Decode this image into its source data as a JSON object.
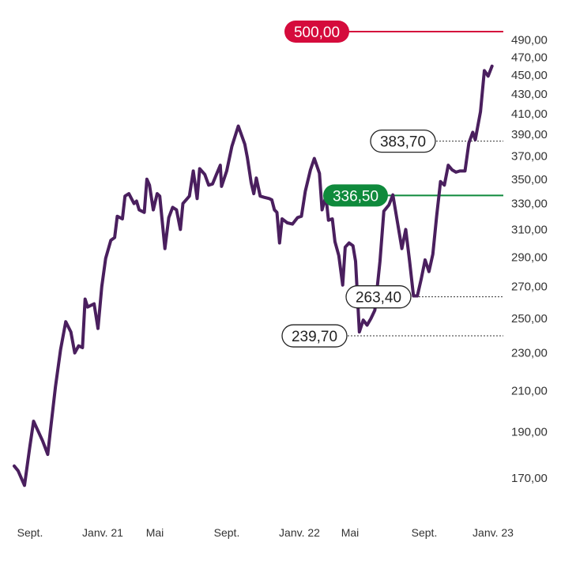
{
  "chart_data": {
    "type": "line",
    "title": "",
    "xlabel": "",
    "ylabel": "",
    "colors": {
      "line": "#4a1f5e",
      "target": "#d50b3c",
      "support": "#0f8a3c",
      "marker": "#333333"
    },
    "x_ticks": [
      "Sept.",
      "Janv. 21",
      "Mai",
      "Sept.",
      "Janv. 22",
      "Mai",
      "Sept.",
      "Janv. 23"
    ],
    "y_ticks": [
      "170,00",
      "190,00",
      "210,00",
      "230,00",
      "250,00",
      "270,00",
      "290,00",
      "310,00",
      "330,00",
      "350,00",
      "370,00",
      "390,00",
      "410,00",
      "430,00",
      "450,00",
      "470,00",
      "490,00"
    ],
    "ylim": [
      165,
      505
    ],
    "y_scale": "log",
    "grid": false,
    "series": [
      {
        "values": [
          [
            0.0,
            175
          ],
          [
            0.3,
            173
          ],
          [
            0.8,
            167
          ],
          [
            1.2,
            183
          ],
          [
            1.5,
            195
          ],
          [
            2.2,
            186
          ],
          [
            2.6,
            180
          ],
          [
            2.8,
            190
          ],
          [
            3.2,
            212
          ],
          [
            3.6,
            232
          ],
          [
            4.0,
            248
          ],
          [
            4.4,
            242
          ],
          [
            4.7,
            230
          ],
          [
            5.0,
            234
          ],
          [
            5.3,
            233
          ],
          [
            5.5,
            262
          ],
          [
            5.7,
            257
          ],
          [
            6.2,
            259
          ],
          [
            6.5,
            244
          ],
          [
            6.8,
            270
          ],
          [
            7.1,
            289
          ],
          [
            7.5,
            302
          ],
          [
            7.8,
            304
          ],
          [
            8.0,
            320
          ],
          [
            8.4,
            318
          ],
          [
            8.6,
            336
          ],
          [
            8.9,
            338
          ],
          [
            9.3,
            330
          ],
          [
            9.5,
            332
          ],
          [
            9.7,
            325
          ],
          [
            10.1,
            323
          ],
          [
            10.3,
            350
          ],
          [
            10.5,
            345
          ],
          [
            10.8,
            325
          ],
          [
            11.1,
            338
          ],
          [
            11.3,
            336
          ],
          [
            11.7,
            296
          ],
          [
            12.0,
            319
          ],
          [
            12.3,
            327
          ],
          [
            12.6,
            325
          ],
          [
            12.9,
            310
          ],
          [
            13.1,
            330
          ],
          [
            13.6,
            336
          ],
          [
            13.9,
            357
          ],
          [
            14.2,
            334
          ],
          [
            14.4,
            359
          ],
          [
            14.8,
            354
          ],
          [
            15.1,
            345
          ],
          [
            15.4,
            346
          ],
          [
            15.7,
            354
          ],
          [
            16.0,
            362
          ],
          [
            16.1,
            344
          ],
          [
            16.5,
            357
          ],
          [
            16.9,
            379
          ],
          [
            17.4,
            398
          ],
          [
            17.9,
            381
          ],
          [
            18.1,
            369
          ],
          [
            18.4,
            347
          ],
          [
            18.6,
            338
          ],
          [
            18.8,
            351
          ],
          [
            19.1,
            336
          ],
          [
            19.4,
            335
          ],
          [
            19.8,
            334
          ],
          [
            20.0,
            333
          ],
          [
            20.2,
            325
          ],
          [
            20.4,
            323
          ],
          [
            20.6,
            300
          ],
          [
            20.8,
            318
          ],
          [
            21.2,
            315
          ],
          [
            21.6,
            314
          ],
          [
            22.0,
            319
          ],
          [
            22.3,
            320
          ],
          [
            22.6,
            340
          ],
          [
            23.0,
            358
          ],
          [
            23.3,
            368
          ],
          [
            23.7,
            355
          ],
          [
            23.9,
            325
          ],
          [
            24.2,
            336
          ],
          [
            24.4,
            317
          ],
          [
            24.7,
            318
          ],
          [
            24.9,
            301
          ],
          [
            25.2,
            291
          ],
          [
            25.5,
            271
          ],
          [
            25.7,
            297
          ],
          [
            26.0,
            300
          ],
          [
            26.3,
            298
          ],
          [
            26.5,
            287
          ],
          [
            26.8,
            242
          ],
          [
            27.1,
            249
          ],
          [
            27.4,
            246
          ],
          [
            27.7,
            250
          ],
          [
            28.0,
            255
          ],
          [
            28.4,
            287
          ],
          [
            28.7,
            324
          ],
          [
            29.1,
            329
          ],
          [
            29.4,
            337
          ],
          [
            29.8,
            313
          ],
          [
            30.1,
            296
          ],
          [
            30.4,
            310
          ],
          [
            30.7,
            287
          ],
          [
            31.0,
            264
          ],
          [
            31.3,
            264
          ],
          [
            31.6,
            275
          ],
          [
            31.9,
            288
          ],
          [
            32.2,
            280
          ],
          [
            32.5,
            292
          ],
          [
            32.8,
            320
          ],
          [
            33.1,
            348
          ],
          [
            33.4,
            345
          ],
          [
            33.7,
            362
          ],
          [
            34.0,
            358
          ],
          [
            34.3,
            356
          ],
          [
            34.6,
            357
          ],
          [
            35.0,
            357
          ],
          [
            35.3,
            382
          ],
          [
            35.6,
            392
          ],
          [
            35.8,
            385
          ],
          [
            36.2,
            412
          ],
          [
            36.5,
            455
          ],
          [
            36.8,
            449
          ],
          [
            37.1,
            460
          ]
        ]
      }
    ],
    "reference_lines": [
      {
        "value": 500,
        "label": "500,00",
        "kind": "target"
      },
      {
        "value": 336.5,
        "label": "336,50",
        "kind": "support"
      }
    ],
    "markers": [
      {
        "value": 383.7,
        "label": "383,70"
      },
      {
        "value": 263.4,
        "label": "263,40"
      },
      {
        "value": 239.7,
        "label": "239,70"
      }
    ]
  }
}
